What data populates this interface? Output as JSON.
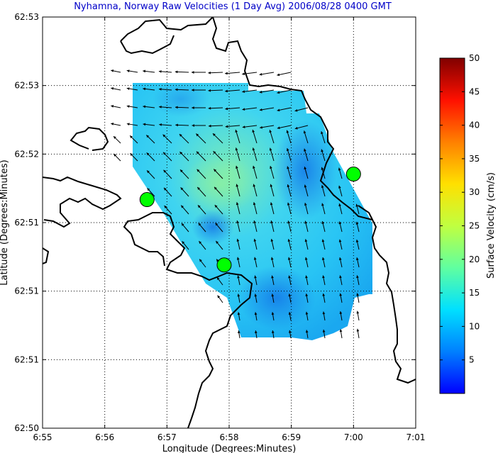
{
  "chart_data": {
    "type": "heatmap",
    "title": "Nyhamna, Norway Raw Velocities (1 Day Avg) 2006/08/28 0400 GMT",
    "xlabel": "Longitude (Degrees:Minutes)",
    "ylabel": "Latitude (Degrees:Minutes)",
    "x_ticks": [
      "6:55",
      "6:56",
      "6:57",
      "6:58",
      "6:59",
      "7:00",
      "7:01"
    ],
    "y_ticks": [
      "62:53",
      "62:53",
      "62:52",
      "62:51",
      "62:51",
      "62:51",
      "62:50"
    ],
    "grid": true,
    "colorbar": {
      "label": "Surface Velocity (cm/s)",
      "range": [
        0,
        50
      ],
      "ticks": [
        5,
        10,
        15,
        20,
        25,
        30,
        35,
        40,
        45,
        50
      ]
    },
    "sites": [
      {
        "lon_min": 56.68,
        "lat_frac": 0.556
      },
      {
        "lon_min": 57.92,
        "lat_frac": 0.397
      },
      {
        "lon_min": 60.0,
        "lat_frac": 0.618
      }
    ],
    "colors": {
      "title": "#0000c8",
      "site_marker": "#00ff00",
      "coast": "#000000"
    }
  }
}
